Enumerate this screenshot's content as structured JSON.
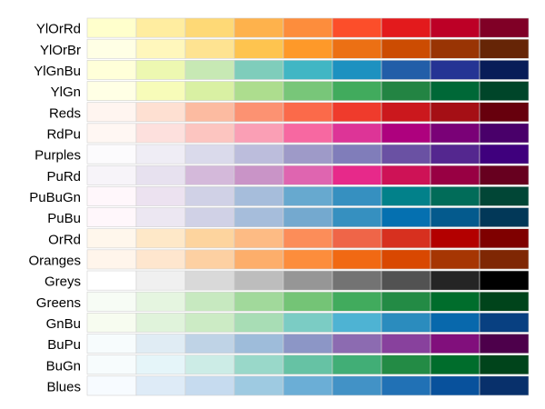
{
  "chart_data": {
    "type": "heatmap",
    "title": "",
    "grid": false,
    "rows": [
      {
        "name": "YlOrRd",
        "colors": [
          "#ffffcc",
          "#ffeda0",
          "#fed976",
          "#feb24c",
          "#fd8d3c",
          "#fc4e2a",
          "#e31a1c",
          "#bd0026",
          "#800026"
        ]
      },
      {
        "name": "YlOrBr",
        "colors": [
          "#ffffe5",
          "#fff7bc",
          "#fee391",
          "#fec44f",
          "#fe9929",
          "#ec7014",
          "#cc4c02",
          "#993404",
          "#662506"
        ]
      },
      {
        "name": "YlGnBu",
        "colors": [
          "#ffffd9",
          "#edf8b1",
          "#c7e9b4",
          "#7fcdbb",
          "#41b6c4",
          "#1d91c0",
          "#225ea8",
          "#253494",
          "#081d58"
        ]
      },
      {
        "name": "YlGn",
        "colors": [
          "#ffffe5",
          "#f7fcb9",
          "#d9f0a3",
          "#addd8e",
          "#78c679",
          "#41ab5d",
          "#238443",
          "#006837",
          "#004529"
        ]
      },
      {
        "name": "Reds",
        "colors": [
          "#fff5f0",
          "#fee0d2",
          "#fcbba1",
          "#fc9272",
          "#fb6a4a",
          "#ef3b2c",
          "#cb181d",
          "#a50f15",
          "#67000d"
        ]
      },
      {
        "name": "RdPu",
        "colors": [
          "#fff7f3",
          "#fde0dd",
          "#fcc5c0",
          "#fa9fb5",
          "#f768a1",
          "#dd3497",
          "#ae017e",
          "#7a0177",
          "#49006a"
        ]
      },
      {
        "name": "Purples",
        "colors": [
          "#fcfbfd",
          "#efedf5",
          "#dadaeb",
          "#bcbddc",
          "#9e9ac8",
          "#807dba",
          "#6a51a3",
          "#54278f",
          "#3f007d"
        ]
      },
      {
        "name": "PuRd",
        "colors": [
          "#f7f4f9",
          "#e7e1ef",
          "#d4b9da",
          "#c994c7",
          "#df65b0",
          "#e7298a",
          "#ce1256",
          "#980043",
          "#67001f"
        ]
      },
      {
        "name": "PuBuGn",
        "colors": [
          "#fff7fb",
          "#ece2f0",
          "#d0d1e6",
          "#a6bddb",
          "#67a9cf",
          "#3690c0",
          "#02818a",
          "#016c59",
          "#014636"
        ]
      },
      {
        "name": "PuBu",
        "colors": [
          "#fff7fb",
          "#ece7f2",
          "#d0d1e6",
          "#a6bddb",
          "#74a9cf",
          "#3690c0",
          "#0570b0",
          "#045a8d",
          "#023858"
        ]
      },
      {
        "name": "OrRd",
        "colors": [
          "#fff7ec",
          "#fee8c8",
          "#fdd49e",
          "#fdbb84",
          "#fc8d59",
          "#ef6548",
          "#d7301f",
          "#b30000",
          "#7f0000"
        ]
      },
      {
        "name": "Oranges",
        "colors": [
          "#fff5eb",
          "#fee6ce",
          "#fdd0a2",
          "#fdae6b",
          "#fd8d3c",
          "#f16913",
          "#d94801",
          "#a63603",
          "#7f2704"
        ]
      },
      {
        "name": "Greys",
        "colors": [
          "#ffffff",
          "#f0f0f0",
          "#d9d9d9",
          "#bdbdbd",
          "#969696",
          "#737373",
          "#525252",
          "#252525",
          "#000000"
        ]
      },
      {
        "name": "Greens",
        "colors": [
          "#f7fcf5",
          "#e5f5e0",
          "#c7e9c0",
          "#a1d99b",
          "#74c476",
          "#41ab5d",
          "#238b45",
          "#006d2c",
          "#00441b"
        ]
      },
      {
        "name": "GnBu",
        "colors": [
          "#f7fcf0",
          "#e0f3db",
          "#ccebc5",
          "#a8ddb5",
          "#7bccc4",
          "#4eb3d3",
          "#2b8cbe",
          "#0868ac",
          "#084081"
        ]
      },
      {
        "name": "BuPu",
        "colors": [
          "#f7fcfd",
          "#e0ecf4",
          "#bfd3e6",
          "#9ebcda",
          "#8c96c6",
          "#8c6bb1",
          "#88419d",
          "#810f7c",
          "#4d004b"
        ]
      },
      {
        "name": "BuGn",
        "colors": [
          "#f7fcfd",
          "#e5f5f9",
          "#ccece6",
          "#99d8c9",
          "#66c2a4",
          "#41ae76",
          "#238b45",
          "#006d2c",
          "#00441b"
        ]
      },
      {
        "name": "Blues",
        "colors": [
          "#f7fbff",
          "#deebf7",
          "#c6dbef",
          "#9ecae1",
          "#6baed6",
          "#4292c6",
          "#2171b5",
          "#08519c",
          "#08306b"
        ]
      }
    ]
  }
}
